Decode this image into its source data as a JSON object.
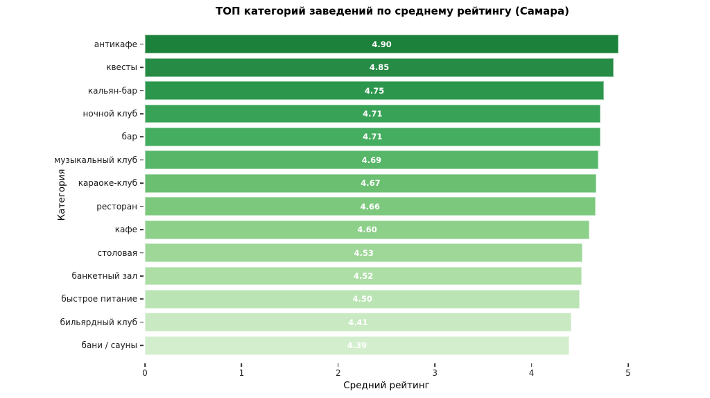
{
  "chart_data": {
    "type": "bar",
    "orientation": "horizontal",
    "title": "ТОП категорий заведений по среднему рейтингу (Самара)",
    "xlabel": "Средний рейтинг",
    "ylabel": "Категория",
    "xlim": [
      0,
      5
    ],
    "xticks": [
      "0",
      "1",
      "2",
      "3",
      "4",
      "5"
    ],
    "grid": false,
    "legend": "none",
    "background_color": "#ffffff",
    "value_label_color": "#ffffff",
    "categories": [
      "антикафе",
      "квесты",
      "кальян-бар",
      "ночной клуб",
      "бар",
      "музыкальный клуб",
      "караоке-клуб",
      "ресторан",
      "кафе",
      "столовая",
      "банкетный зал",
      "быстрое питание",
      "бильярдный клуб",
      "бани / сауны"
    ],
    "values": [
      4.9,
      4.85,
      4.75,
      4.71,
      4.71,
      4.69,
      4.67,
      4.66,
      4.6,
      4.53,
      4.52,
      4.5,
      4.41,
      4.39
    ],
    "value_labels": [
      "4.90",
      "4.85",
      "4.75",
      "4.71",
      "4.71",
      "4.69",
      "4.67",
      "4.66",
      "4.60",
      "4.53",
      "4.52",
      "4.50",
      "4.41",
      "4.39"
    ],
    "bar_colors": [
      "#1c813b",
      "#268b45",
      "#2d964d",
      "#38a256",
      "#45ad5f",
      "#58b668",
      "#6bbf71",
      "#7cc87d",
      "#8dd08a",
      "#9ed798",
      "#acdea6",
      "#bae4b4",
      "#c8e9c1",
      "#d3eecd"
    ]
  }
}
